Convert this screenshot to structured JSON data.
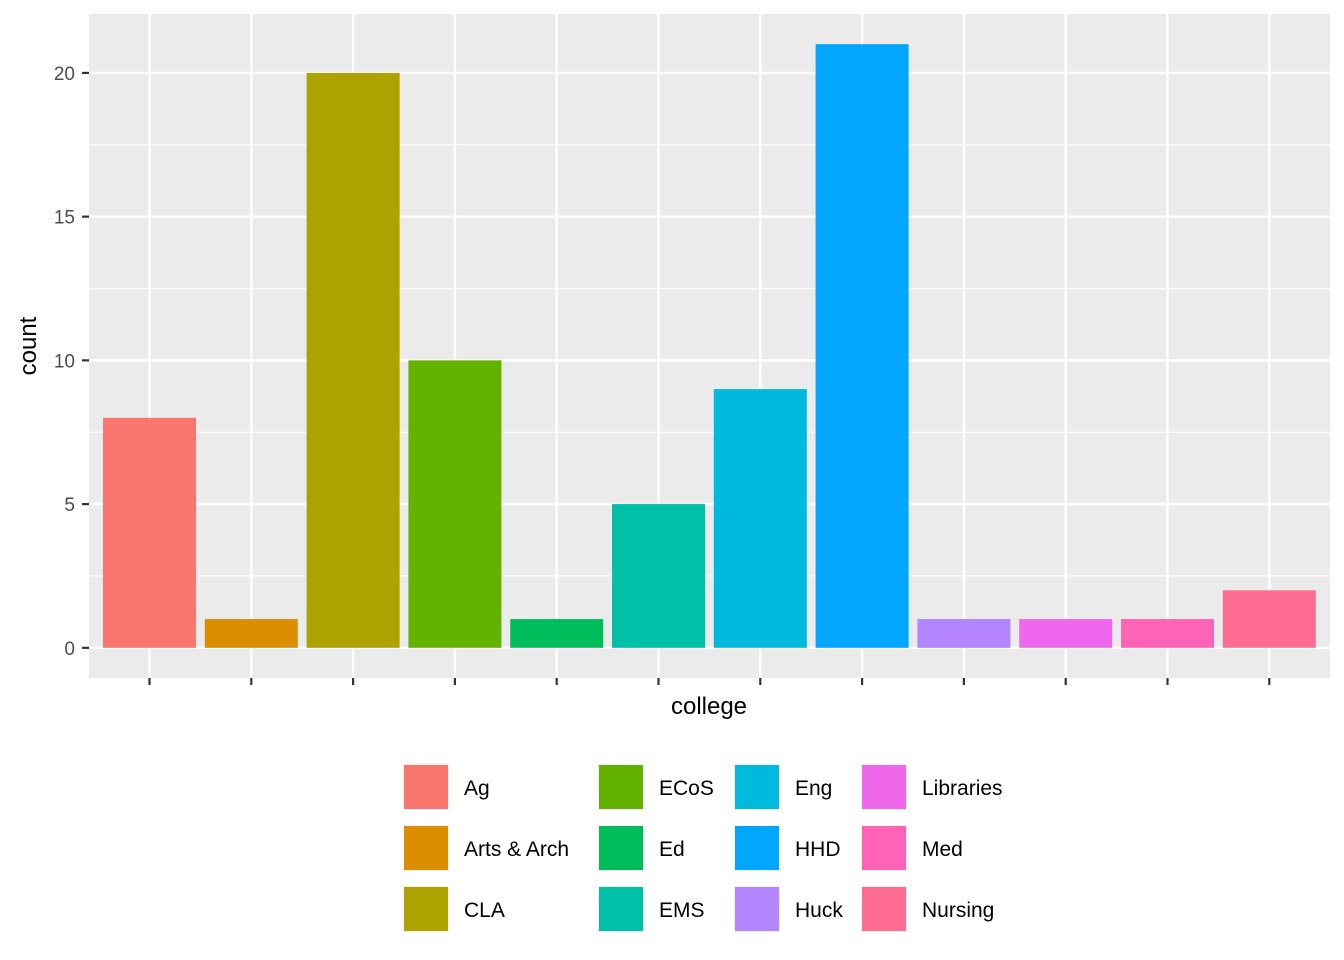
{
  "chart_data": {
    "type": "bar",
    "categories": [
      "Ag",
      "Arts & Arch",
      "CLA",
      "ECoS",
      "Ed",
      "EMS",
      "Eng",
      "HHD",
      "Huck",
      "Libraries",
      "Med",
      "Nursing"
    ],
    "values": [
      8,
      1,
      20,
      10,
      1,
      5,
      9,
      21,
      1,
      1,
      1,
      2
    ],
    "colors": [
      "#F8766D",
      "#DB8E00",
      "#AEA200",
      "#64B200",
      "#00BD5C",
      "#00C1A7",
      "#00BADE",
      "#00A6FF",
      "#B385FF",
      "#EF67EB",
      "#FF63B6",
      "#FF6C91"
    ],
    "xlabel": "college",
    "ylabel": "count",
    "ylim": [
      -1.05,
      22.05
    ],
    "yticks": [
      0,
      5,
      10,
      15,
      20
    ],
    "grid": true,
    "panel_background": "#EBEBEB",
    "grid_color": "#FFFFFF",
    "x_tick_labels_shown": false,
    "legend": {
      "position": "bottom",
      "columns": 4
    }
  }
}
